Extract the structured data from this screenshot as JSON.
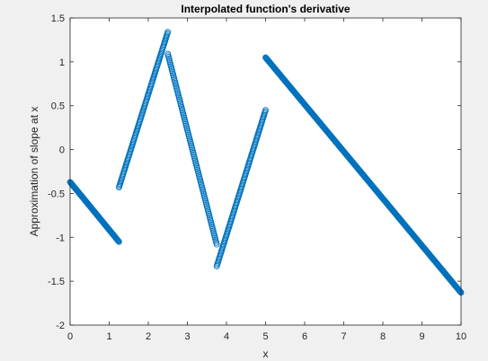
{
  "chart_data": {
    "type": "scatter",
    "title": "Interpolated function's derivative",
    "xlabel": "x",
    "ylabel": "Approximation of slope at x",
    "xlim": [
      0,
      10
    ],
    "ylim": [
      -2,
      1.5
    ],
    "xticks": [
      "0",
      "1",
      "2",
      "3",
      "4",
      "5",
      "6",
      "7",
      "8",
      "9",
      "10"
    ],
    "yticks": [
      "-2",
      "-1.5",
      "-1",
      "-0.5",
      "0",
      "0.5",
      "1",
      "1.5"
    ],
    "grid": false,
    "marker": "open-circle",
    "series": [
      {
        "color": "#0072BD",
        "segments": [
          {
            "x_start": 0.0,
            "y_start": -0.37,
            "x_end": 1.25,
            "y_end": -1.05
          },
          {
            "x_start": 1.25,
            "y_start": -0.43,
            "x_end": 2.5,
            "y_end": 1.34
          },
          {
            "x_start": 2.5,
            "y_start": 1.09,
            "x_end": 3.75,
            "y_end": -1.08
          },
          {
            "x_start": 3.75,
            "y_start": -1.33,
            "x_end": 5.0,
            "y_end": 0.45
          },
          {
            "x_start": 5.0,
            "y_start": 1.05,
            "x_end": 10.0,
            "y_end": -1.63
          }
        ]
      }
    ]
  }
}
